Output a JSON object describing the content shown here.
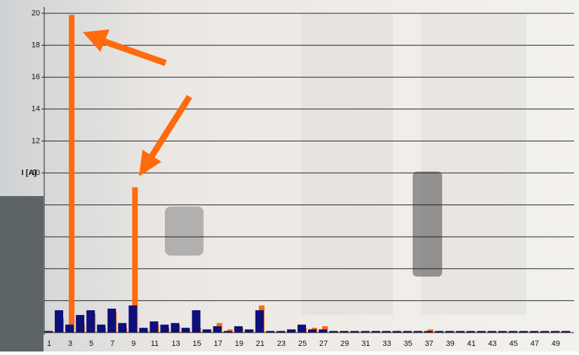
{
  "chart_data": {
    "type": "bar",
    "y_label": "I [A]",
    "categories": [
      1,
      null,
      3,
      null,
      5,
      null,
      7,
      null,
      9,
      null,
      11,
      null,
      13,
      null,
      15,
      null,
      17,
      null,
      19,
      null,
      21,
      null,
      23,
      null,
      25,
      null,
      27,
      null,
      29,
      null,
      31,
      null,
      33,
      null,
      35,
      null,
      37,
      null,
      39,
      null,
      41,
      null,
      43,
      null,
      45,
      null,
      47,
      null,
      49,
      null
    ],
    "series": [
      {
        "color": "#ff6a0d",
        "values": [
          0.1,
          0.9,
          19.9,
          0.5,
          1.2,
          0.3,
          1.3,
          0.3,
          9.1,
          0.2,
          0.5,
          0.3,
          0.5,
          0.1,
          0.3,
          0.2,
          0.6,
          0.2,
          0.3,
          0.2,
          1.7,
          0.1,
          0.1,
          0.2,
          0.3,
          0.3,
          0.4,
          0.1,
          0.1,
          0.1,
          0.1,
          0.1,
          0.1,
          0.1,
          0.1,
          0.1,
          0.2,
          0.1,
          0.1,
          0.1,
          0.1,
          0.1,
          0.1,
          0.1,
          0.1,
          0.1,
          0.1,
          0.1,
          0.1,
          0.1
        ]
      },
      {
        "color": "#0d0f7a",
        "values": [
          0.1,
          1.4,
          0.5,
          1.1,
          1.4,
          0.5,
          1.5,
          0.6,
          1.7,
          0.3,
          0.7,
          0.5,
          0.6,
          0.3,
          1.4,
          0.2,
          0.4,
          0.1,
          0.4,
          0.2,
          1.4,
          0.1,
          0.1,
          0.2,
          0.5,
          0.2,
          0.2,
          0.1,
          0.1,
          0.1,
          0.1,
          0.1,
          0.1,
          0.1,
          0.1,
          0.1,
          0.1,
          0.1,
          0.1,
          0.1,
          0.1,
          0.1,
          0.1,
          0.1,
          0.1,
          0.1,
          0.1,
          0.1,
          0.1,
          0.1
        ]
      }
    ],
    "ylim": [
      0,
      20
    ],
    "yticks": [
      10,
      12,
      14,
      16,
      18,
      20
    ],
    "minor_grid": [
      2,
      4,
      6,
      8
    ],
    "grid": true
  }
}
